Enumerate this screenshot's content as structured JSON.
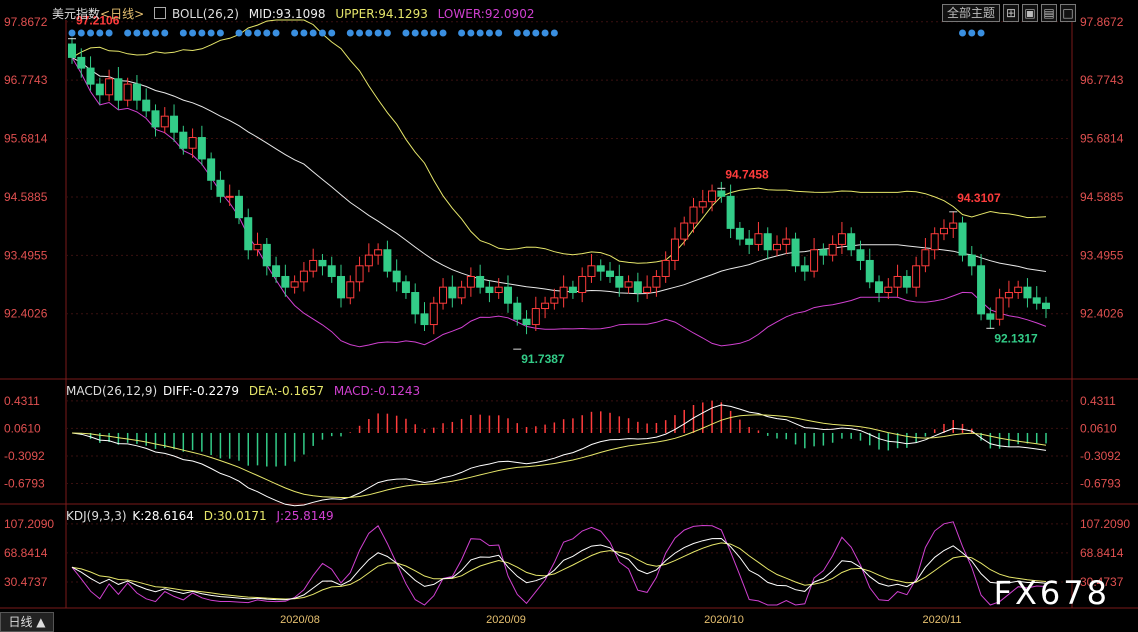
{
  "header": {
    "symbol": "美元指数",
    "period": "<日线>",
    "boll": "BOLL(26,2)",
    "mid": "MID:93.1098",
    "upper": "UPPER:94.1293",
    "lower": "LOWER:92.0902"
  },
  "macd_header": {
    "name": "MACD(26,12,9)",
    "diff": "DIFF:-0.2279",
    "dea": "DEA:-0.1657",
    "macd": "MACD:-0.1243"
  },
  "kdj_header": {
    "name": "KDJ(9,3,3)",
    "k": "K:28.6164",
    "d": "D:30.0171",
    "j": "J:25.8149"
  },
  "toolbar": {
    "theme_button": "全部主题"
  },
  "period_tab": "日线",
  "watermark": "FX678",
  "colors": {
    "up": "#ff3c3c",
    "down": "#33cc88",
    "upper": "#e6e66a",
    "mid": "#e8e8e8",
    "lower": "#d040d0",
    "dot": "#3a8fe0",
    "diff": "#ffffff",
    "dea": "#e6e66a",
    "k": "#ffffff",
    "d": "#e6e66a",
    "j": "#d040d0",
    "axis_text": "#e05050",
    "date_text": "#e6c070"
  },
  "chart_data": {
    "type": "candlestick",
    "y_axis_labels": [
      "97.8672",
      "96.7743",
      "95.6814",
      "94.5885",
      "93.4955",
      "92.4026"
    ],
    "ylim": [
      91.2,
      97.9
    ],
    "x_labels": [
      "2020/08",
      "2020/09",
      "2020/10",
      "2020/11"
    ],
    "annotations": [
      "97.2106",
      "94.7458",
      "94.3107",
      "91.7387",
      "92.1317"
    ],
    "closes": [
      97.2,
      97.0,
      96.7,
      96.5,
      96.8,
      96.4,
      96.7,
      96.4,
      96.2,
      95.9,
      96.1,
      95.8,
      95.5,
      95.7,
      95.3,
      94.9,
      94.6,
      94.6,
      94.2,
      93.6,
      93.7,
      93.3,
      93.1,
      92.9,
      93.0,
      93.2,
      93.4,
      93.3,
      93.1,
      92.7,
      93.0,
      93.3,
      93.5,
      93.6,
      93.2,
      93.0,
      92.8,
      92.4,
      92.2,
      92.6,
      92.9,
      92.7,
      92.9,
      93.1,
      92.9,
      92.8,
      92.9,
      92.6,
      92.3,
      92.2,
      92.5,
      92.6,
      92.7,
      92.9,
      92.8,
      93.1,
      93.3,
      93.2,
      93.1,
      92.9,
      93.0,
      92.8,
      92.9,
      93.1,
      93.4,
      93.8,
      94.1,
      94.4,
      94.5,
      94.7,
      94.6,
      94.0,
      93.8,
      93.7,
      93.9,
      93.6,
      93.7,
      93.8,
      93.3,
      93.2,
      93.6,
      93.5,
      93.7,
      93.9,
      93.6,
      93.4,
      93.0,
      92.8,
      92.9,
      93.1,
      92.9,
      93.3,
      93.6,
      93.9,
      94.0,
      94.1,
      93.5,
      93.3,
      92.4,
      92.3,
      92.7,
      92.8,
      92.9,
      92.7,
      92.6,
      92.5
    ],
    "macd_labels": [
      "0.4311",
      "0.0610",
      "-0.3092",
      "-0.6793"
    ],
    "macd_ylim": [
      -0.9,
      0.55
    ],
    "kdj_labels": [
      "107.2090",
      "68.8414",
      "30.4737"
    ],
    "kdj_ylim": [
      0,
      115
    ]
  }
}
